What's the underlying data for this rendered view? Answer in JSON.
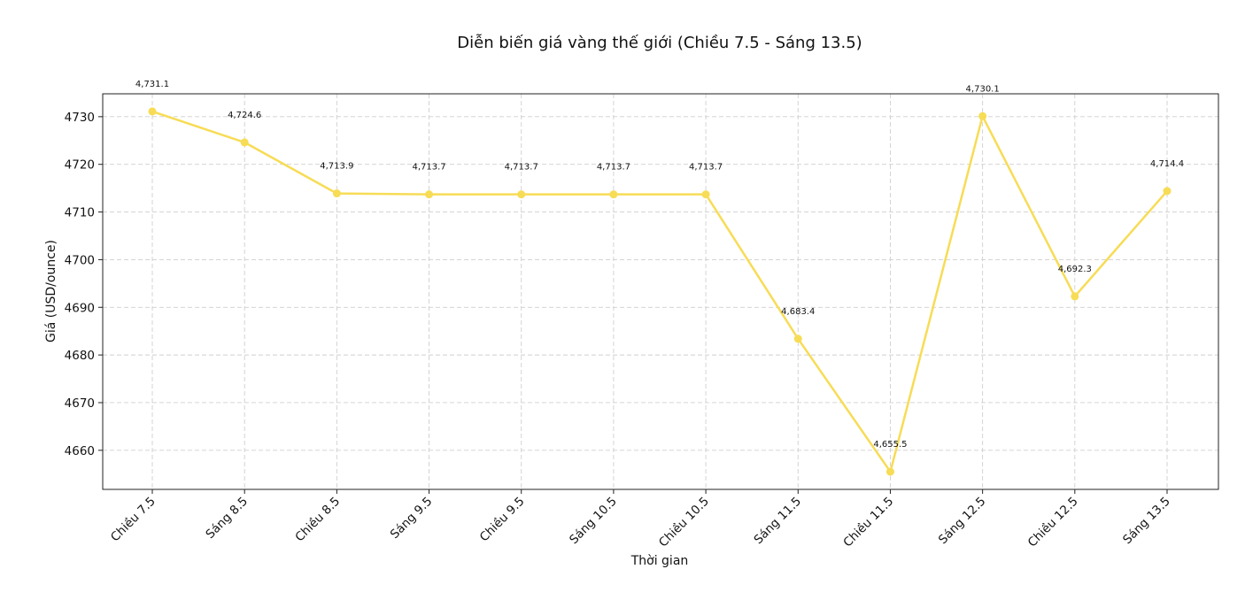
{
  "chart_data": {
    "type": "line",
    "title": "Diễn biến giá vàng thế giới (Chiều 7.5 - Sáng 13.5)",
    "xlabel": "Thời gian",
    "ylabel": "Giá (USD/ounce)",
    "categories": [
      "Chiều 7.5",
      "Sáng 8.5",
      "Chiều 8.5",
      "Sáng 9.5",
      "Chiều 9.5",
      "Sáng 10.5",
      "Chiều 10.5",
      "Sáng 11.5",
      "Chiều 11.5",
      "Sáng 12.5",
      "Chiều 12.5",
      "Sáng 13.5"
    ],
    "values": [
      4731.1,
      4724.6,
      4713.9,
      4713.7,
      4713.7,
      4713.7,
      4713.7,
      4683.4,
      4655.5,
      4730.1,
      4692.3,
      4714.4
    ],
    "data_labels": [
      "4,731.1",
      "4,724.6",
      "4,713.9",
      "4,713.7",
      "4,713.7",
      "4,713.7",
      "4,713.7",
      "4,683.4",
      "4,655.5",
      "4,730.1",
      "4,692.3",
      "4,714.4"
    ],
    "yticks": [
      4660,
      4670,
      4680,
      4690,
      4700,
      4710,
      4720,
      4730
    ],
    "ylim": [
      4651.8,
      4734.8
    ],
    "grid": true,
    "line_color": "#F7DC56"
  }
}
